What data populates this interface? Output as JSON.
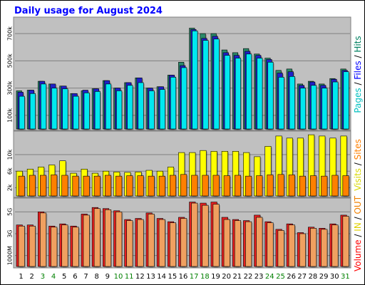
{
  "chart_data": {
    "type": "bar",
    "title": "Daily usage for August 2024",
    "x": [
      "1",
      "2",
      "3",
      "4",
      "5",
      "6",
      "7",
      "8",
      "9",
      "10",
      "11",
      "12",
      "13",
      "14",
      "15",
      "16",
      "17",
      "18",
      "19",
      "20",
      "21",
      "22",
      "23",
      "24",
      "25",
      "26",
      "27",
      "28",
      "29",
      "30",
      "31"
    ],
    "weekend_days": [
      "3",
      "4",
      "10",
      "11",
      "17",
      "18",
      "24",
      "25",
      "31"
    ],
    "panels": [
      {
        "id": "hits",
        "ylabel": "Pages / Files / Hits",
        "ylabel_parts": [
          {
            "text": "Pages",
            "color": "#00c0c0"
          },
          {
            "text": " / ",
            "color": "#000000"
          },
          {
            "text": "Files",
            "color": "#0000ff"
          },
          {
            "text": " / ",
            "color": "#000000"
          },
          {
            "text": "Hits",
            "color": "#008060"
          }
        ],
        "yticks": [
          "100k",
          "300k",
          "500k",
          "700k"
        ],
        "ylim": [
          0,
          800000
        ],
        "series": [
          {
            "name": "Hits",
            "color": "#2a8a6a",
            "values": [
              280000,
              285000,
              350000,
              330000,
              315000,
              260000,
              280000,
              295000,
              355000,
              300000,
              340000,
              375000,
              300000,
              310000,
              395000,
              490000,
              740000,
              700000,
              700000,
              580000,
              560000,
              590000,
              550000,
              520000,
              430000,
              440000,
              330000,
              350000,
              330000,
              370000,
              440000
            ]
          },
          {
            "name": "Files",
            "color": "#2020c8",
            "values": [
              270000,
              285000,
              350000,
              330000,
              315000,
              260000,
              285000,
              295000,
              355000,
              300000,
              340000,
              375000,
              300000,
              310000,
              395000,
              465000,
              730000,
              665000,
              680000,
              560000,
              540000,
              570000,
              540000,
              510000,
              410000,
              420000,
              320000,
              345000,
              320000,
              365000,
              430000
            ]
          },
          {
            "name": "Pages",
            "color": "#00e8f0",
            "values": [
              240000,
              260000,
              330000,
              300000,
              295000,
              240000,
              265000,
              275000,
              330000,
              280000,
              320000,
              340000,
              280000,
              290000,
              380000,
              450000,
              720000,
              650000,
              660000,
              540000,
              520000,
              550000,
              520000,
              490000,
              380000,
              385000,
              300000,
              320000,
              300000,
              345000,
              420000
            ]
          }
        ]
      },
      {
        "id": "visits",
        "ylabel": "Visits / Sites",
        "ylabel_parts": [
          {
            "text": "Visits",
            "color": "#d8d800"
          },
          {
            "text": " / ",
            "color": "#000000"
          },
          {
            "text": "Sites",
            "color": "#ff8000"
          }
        ],
        "yticks": [
          "2k",
          "6k",
          "10k"
        ],
        "ylim": [
          0,
          15000
        ],
        "series": [
          {
            "name": "Visits",
            "color": "#ffff00",
            "values": [
              6000,
              6500,
              7000,
              7500,
              8500,
              5500,
              6500,
              5500,
              6000,
              5800,
              5700,
              5800,
              6200,
              6000,
              7000,
              10500,
              10500,
              11000,
              10800,
              10800,
              10800,
              10500,
              9500,
              12000,
              14500,
              14000,
              14000,
              14800,
              14500,
              14000,
              14500
            ]
          },
          {
            "name": "Sites",
            "color": "#ff8000",
            "values": [
              4800,
              5000,
              5000,
              5100,
              5000,
              4800,
              4800,
              4800,
              5000,
              4800,
              4900,
              4900,
              4800,
              4800,
              5000,
              5200,
              5000,
              5000,
              5000,
              4900,
              5000,
              4800,
              4900,
              5100,
              5200,
              5100,
              4800,
              4900,
              4800,
              5000,
              4900
            ]
          }
        ]
      },
      {
        "id": "volume",
        "ylabel": "Volume / IN / OUT",
        "ylabel_parts": [
          {
            "text": "Volume",
            "color": "#ff0000"
          },
          {
            "text": " / ",
            "color": "#000000"
          },
          {
            "text": "IN",
            "color": "#e0d000"
          },
          {
            "text": " / ",
            "color": "#000000"
          },
          {
            "text": "OUT",
            "color": "#f08000"
          }
        ],
        "yticks": [
          "1000M",
          "3G",
          "5G"
        ],
        "ylim": [
          0,
          6000
        ],
        "series": [
          {
            "name": "Volume",
            "color": "#e82020",
            "values": [
              3800,
              3800,
              5000,
              3700,
              3900,
              3700,
              4800,
              5400,
              5300,
              5100,
              4300,
              4400,
              4900,
              4400,
              4100,
              4500,
              5900,
              5800,
              5900,
              4500,
              4300,
              4200,
              4700,
              4100,
              3400,
              3900,
              3100,
              3600,
              3500,
              3900,
              4700
            ]
          },
          {
            "name": "IN",
            "color": "#f0a060",
            "values": [
              3700,
              3700,
              4900,
              3600,
              3800,
              3600,
              4700,
              5300,
              5200,
              5000,
              4200,
              4300,
              4800,
              4300,
              4000,
              4400,
              5800,
              5600,
              5700,
              4300,
              4200,
              4100,
              4500,
              4000,
              3300,
              3800,
              3000,
              3500,
              3400,
              3800,
              4600
            ]
          }
        ]
      }
    ]
  }
}
